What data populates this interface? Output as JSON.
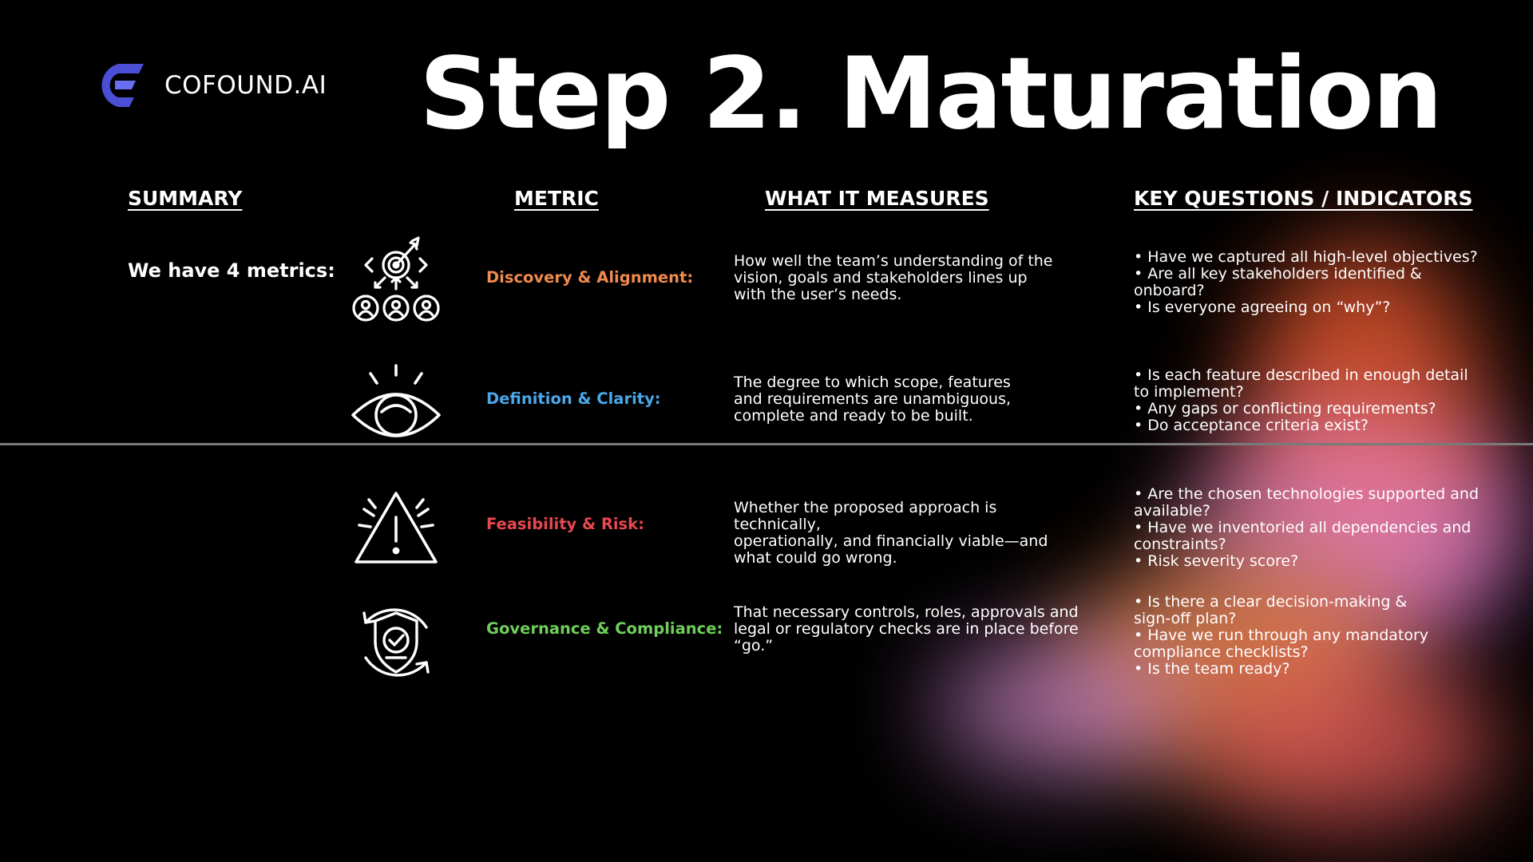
{
  "brand": {
    "name": "COFOUND.AI"
  },
  "title": "Step 2. Maturation",
  "headers": {
    "summary": "SUMMARY",
    "metric": "METRIC",
    "measures": "WHAT IT MEASURES",
    "questions": "KEY QUESTIONS / INDICATORS"
  },
  "summary_text": "We have 4 metrics:",
  "metrics": [
    {
      "icon": "target-people-icon",
      "name": "Discovery & Alignment:",
      "color": "#f08a4e",
      "measure": [
        "How well the team’s understanding of the",
        "vision, goals and stakeholders lines up",
        "with the user’s needs."
      ],
      "questions": [
        "• Have we captured all high-level objectives?",
        "• Are all key stakeholders identified &",
        "onboard?",
        "• Is everyone agreeing on “why”?"
      ]
    },
    {
      "icon": "eye-icon",
      "name": "Definition & Clarity:",
      "color": "#4aa8ea",
      "measure": [
        "The degree to which scope, features",
        "and requirements are unambiguous,",
        "complete and ready to be built."
      ],
      "questions": [
        "• Is each feature described in enough detail",
        "to implement?",
        "• Any gaps or conflicting requirements?",
        "• Do acceptance criteria exist?"
      ]
    },
    {
      "icon": "warning-icon",
      "name": "Feasibility & Risk:",
      "color": "#e8484f",
      "measure": [
        "Whether the proposed approach is technically,",
        "operationally, and financially viable—and",
        "what could go wrong."
      ],
      "questions": [
        "• Are the chosen technologies supported and",
        "available?",
        "• Have we inventoried all dependencies and",
        "constraints?",
        "• Risk severity score?"
      ]
    },
    {
      "icon": "shield-check-icon",
      "name": "Governance & Compliance:",
      "color": "#6fcf5a",
      "measure": [
        "That necessary controls, roles, approvals and",
        "legal or regulatory checks are in place before",
        "“go.”"
      ],
      "questions": [
        "• Is there a clear decision-making &",
        "sign-off plan?",
        "• Have we run through any mandatory",
        "compliance checklists?",
        "• Is the team ready?"
      ]
    }
  ]
}
